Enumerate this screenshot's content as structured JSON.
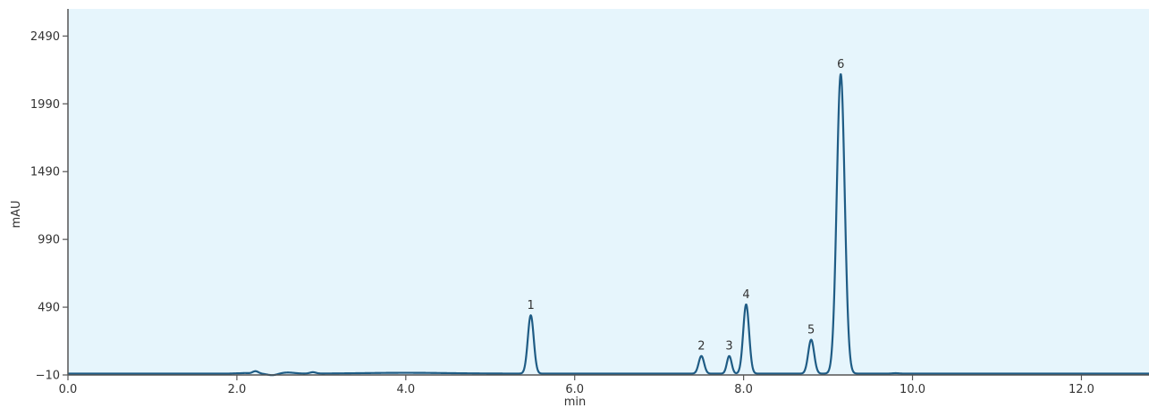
{
  "chart_data": {
    "type": "line",
    "title": "",
    "xlabel": "min",
    "ylabel": "mAU",
    "xlim": [
      0.0,
      12.8
    ],
    "ylim": [
      -10,
      2690
    ],
    "x_ticks": [
      0.0,
      2.0,
      4.0,
      6.0,
      8.0,
      10.0,
      12.0
    ],
    "x_tick_labels": [
      "0.0",
      "2.0",
      "4.0",
      "6.0",
      "8.0",
      "10.0",
      "12.0"
    ],
    "y_ticks": [
      -10,
      490,
      990,
      1490,
      1990,
      2490
    ],
    "y_tick_labels": [
      "−10",
      "490",
      "990",
      "1490",
      "1990",
      "2490"
    ],
    "grid": false,
    "legend": "none",
    "colors": {
      "plot_background": "#e6f5fc",
      "line": "#1f5c85",
      "axis": "#555555"
    },
    "baseline": 0,
    "baseline_features": [
      {
        "x": 2.0,
        "height": 2,
        "width": 0.05
      },
      {
        "x": 2.1,
        "height": 4,
        "width": 0.04
      },
      {
        "x": 2.22,
        "height": 18,
        "width": 0.035
      },
      {
        "x": 2.42,
        "height": -12,
        "width": 0.06
      },
      {
        "x": 2.6,
        "height": 8,
        "width": 0.08
      },
      {
        "x": 2.9,
        "height": 10,
        "width": 0.035
      },
      {
        "x": 4.0,
        "height": 6,
        "width": 0.5
      },
      {
        "x": 9.8,
        "height": 3,
        "width": 0.04
      }
    ],
    "peaks": [
      {
        "label": "1",
        "x": 5.48,
        "height": 430,
        "width": 0.035
      },
      {
        "label": "2",
        "x": 7.5,
        "height": 130,
        "width": 0.032
      },
      {
        "label": "3",
        "x": 7.83,
        "height": 130,
        "width": 0.028
      },
      {
        "label": "4",
        "x": 8.03,
        "height": 510,
        "width": 0.035
      },
      {
        "label": "5",
        "x": 8.8,
        "height": 250,
        "width": 0.035
      },
      {
        "label": "6",
        "x": 9.15,
        "height": 2210,
        "width": 0.047
      }
    ]
  }
}
